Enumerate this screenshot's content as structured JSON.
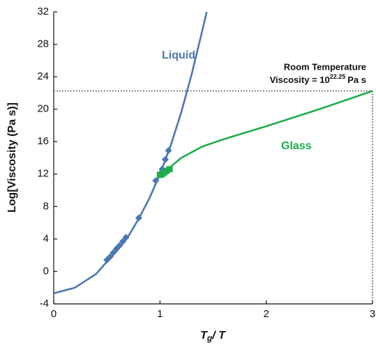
{
  "chart_data": {
    "type": "line",
    "y_label": "Log[Viscosity (Pa s)]",
    "x_label": {
      "main": "T",
      "sub": "g",
      "rest": "/ T"
    },
    "xlim": [
      0,
      3
    ],
    "xticks": [
      0,
      1,
      2,
      3
    ],
    "ylim": [
      -4,
      32
    ],
    "yticks": [
      -4,
      0,
      4,
      8,
      12,
      16,
      20,
      24,
      28,
      32
    ],
    "grid": false,
    "series": [
      {
        "name": "Liquid",
        "color": "#4a76b2",
        "x": [
          0,
          0.2,
          0.4,
          0.5,
          0.6,
          0.7,
          0.8,
          0.9,
          1.0,
          1.1,
          1.2,
          1.3,
          1.4,
          1.44
        ],
        "values": [
          -2.7,
          -2.0,
          -0.3,
          1.2,
          2.6,
          4.3,
          6.5,
          9.0,
          12.0,
          15.5,
          19.6,
          24.4,
          29.8,
          32
        ],
        "points": {
          "x": [
            0.5,
            0.53,
            0.56,
            0.59,
            0.62,
            0.65,
            0.68,
            0.8,
            0.96,
            1.0,
            1.02,
            1.05,
            1.08
          ],
          "values": [
            1.4,
            1.8,
            2.3,
            2.8,
            3.2,
            3.7,
            4.2,
            6.6,
            11.2,
            12.0,
            12.6,
            13.8,
            14.9
          ]
        }
      },
      {
        "name": "Glass",
        "color": "#1fad4b",
        "x": [
          1.0,
          1.05,
          1.1,
          1.2,
          1.4,
          1.6,
          2.0,
          2.5,
          3.0
        ],
        "values": [
          11.9,
          12.3,
          12.9,
          14.0,
          15.4,
          16.3,
          17.9,
          20.0,
          22.25
        ],
        "points": {
          "x": [
            1.0,
            1.02,
            1.04,
            1.06,
            1.09
          ],
          "values": [
            11.9,
            12.0,
            12.2,
            12.4,
            12.6
          ]
        }
      }
    ],
    "reference": {
      "x": 3,
      "y": 22.25
    },
    "annotation": {
      "line1": "Room Temperature",
      "prefix": "Viscosity = 10",
      "suffix": "Pa s"
    }
  }
}
